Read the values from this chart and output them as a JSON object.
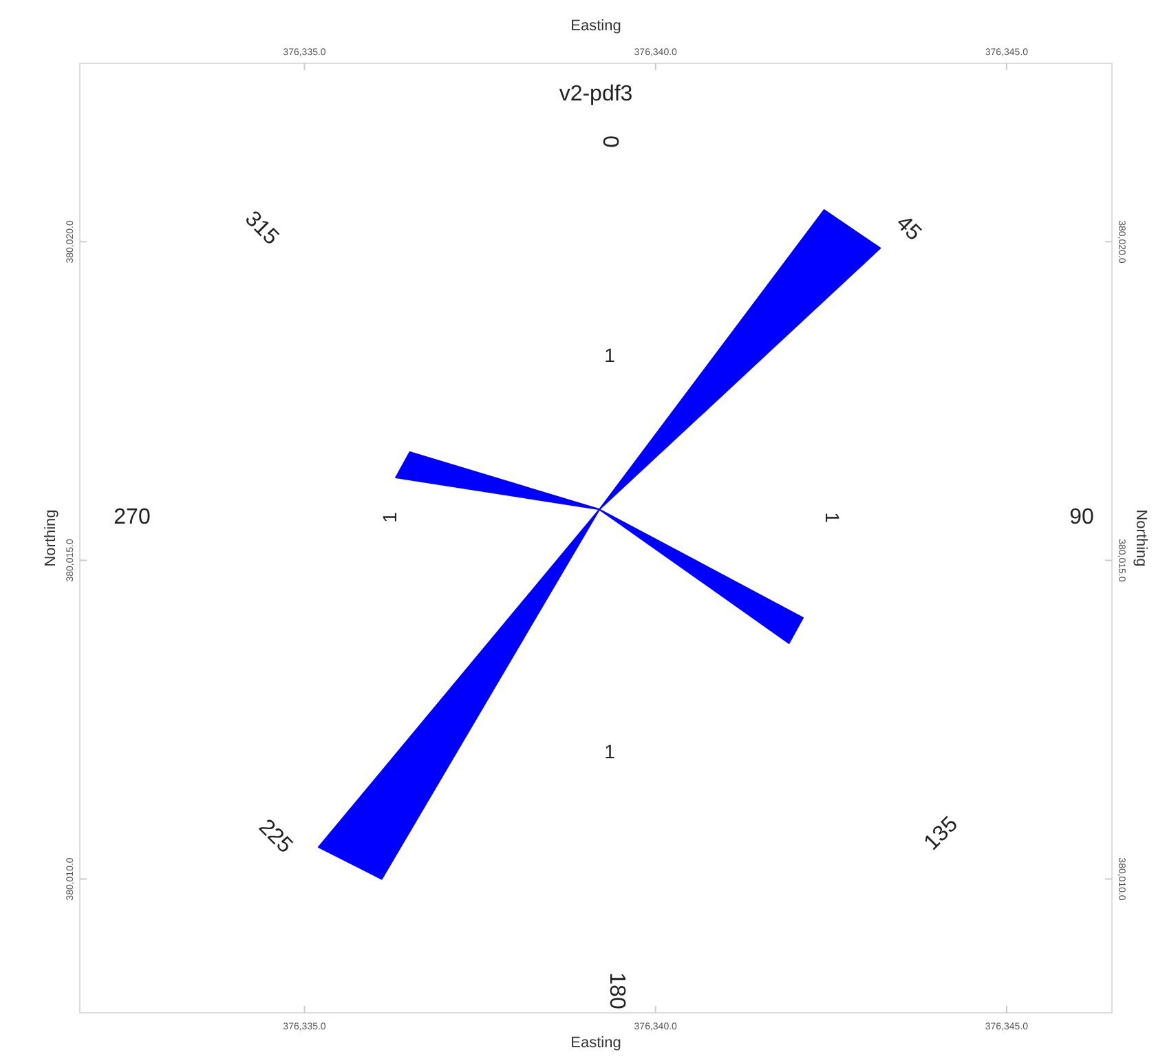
{
  "chart_data": {
    "type": "area",
    "title": "v2-pdf3",
    "xlabel": "Easting",
    "x2label": "Easting",
    "ylabel": "Northing",
    "y2label": "Northing",
    "xlim": [
      376331.8,
      376346.5
    ],
    "x2lim": [
      376331.8,
      376346.5
    ],
    "ylim": [
      380007.9,
      380022.8
    ],
    "y2lim": [
      380007.9,
      380022.8
    ],
    "xticks": [
      {
        "value": 376335,
        "label": "376,335.0"
      },
      {
        "value": 376340,
        "label": "376,340.0"
      },
      {
        "value": 376345,
        "label": "376,345.0"
      }
    ],
    "x2ticks": [
      {
        "value": 376335,
        "label": "376,335.0"
      },
      {
        "value": 376340,
        "label": "376,340.0"
      },
      {
        "value": 376345,
        "label": "376,345.0"
      }
    ],
    "yticks": [
      {
        "value": 380010,
        "label": "380,010.0"
      },
      {
        "value": 380015,
        "label": "380,015.0"
      },
      {
        "value": 380020,
        "label": "380,020.0"
      }
    ],
    "y2ticks": [
      {
        "value": 380010,
        "label": "380,010.0"
      },
      {
        "value": 380015,
        "label": "380,015.0"
      },
      {
        "value": 380020,
        "label": "380,020.0"
      }
    ],
    "series": [
      {
        "color": "#0000ff",
        "x": [
          376339.2,
          376342.4,
          376343.2,
          376339.2,
          376342.1,
          376341.9,
          376339.2,
          376336.1,
          376335.2,
          376339.2,
          376336.3,
          376336.5,
          376339.2
        ],
        "values": [
          380015.8,
          380020.5,
          380019.9,
          380015.8,
          380014.1,
          380013.7,
          380015.8,
          380010.0,
          380010.5,
          380015.8,
          380016.3,
          380016.7,
          380015.8
        ]
      }
    ],
    "marker": "none",
    "line_style": "solid",
    "annotations": [
      "0",
      "45",
      "90",
      "135",
      "180",
      "225",
      "270",
      "315",
      "1",
      "1",
      "1",
      "1"
    ]
  }
}
